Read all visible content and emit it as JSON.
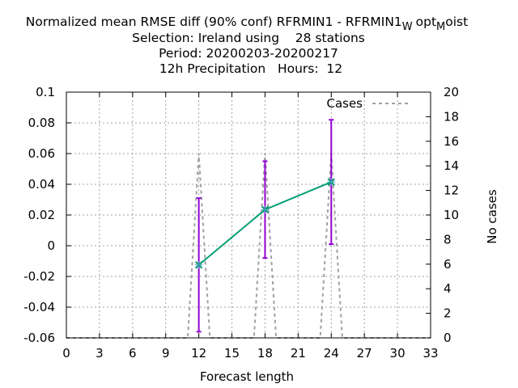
{
  "chart_data": {
    "type": "line",
    "title": {
      "line1_main": "Normalized mean RMSE diff (90% conf) RFRMIN1 - RFRMIN1",
      "line1_sub1": "W",
      "line1_mid": "opt",
      "line1_sub2": "M",
      "line1_end": "oist",
      "line2": "Selection: Ireland using    28 stations",
      "line3": "Period: 20200203-20200217",
      "line4": "12h Precipitation   Hours:  12"
    },
    "xlabel": "Forecast length",
    "ylabel_right": "No cases",
    "xlim": [
      0,
      33
    ],
    "ylim": [
      -0.06,
      0.1
    ],
    "y2lim": [
      0,
      20
    ],
    "x_ticks": [
      "0",
      "3",
      "6",
      "9",
      "12",
      "15",
      "18",
      "21",
      "24",
      "27",
      "30",
      "33"
    ],
    "y_ticks": [
      "-0.06",
      "-0.04",
      "-0.02",
      "0",
      "0.02",
      "0.04",
      "0.06",
      "0.08",
      "0.1"
    ],
    "y2_ticks": [
      "0",
      "2",
      "4",
      "6",
      "8",
      "10",
      "12",
      "14",
      "16",
      "18",
      "20"
    ],
    "grid": true,
    "legend_position": "top-right",
    "series": [
      {
        "kind": "mean_diff",
        "color": "#009e73",
        "points": [
          {
            "x": 12,
            "y": -0.0125,
            "low": -0.056,
            "high": 0.031
          },
          {
            "x": 18,
            "y": 0.0235,
            "low": -0.008,
            "high": 0.055
          },
          {
            "x": 24,
            "y": 0.0415,
            "low": 0.001,
            "high": 0.082
          }
        ],
        "errorbar_color": "#9400d3"
      },
      {
        "name": "Cases",
        "axis": "right",
        "color": "#a0a0a0",
        "dash": true,
        "x": [
          0,
          11,
          12,
          13,
          17,
          18,
          19,
          23,
          24,
          25,
          33
        ],
        "y": [
          0,
          0,
          15,
          0,
          0,
          15,
          0,
          0,
          15,
          0,
          0
        ]
      }
    ]
  }
}
